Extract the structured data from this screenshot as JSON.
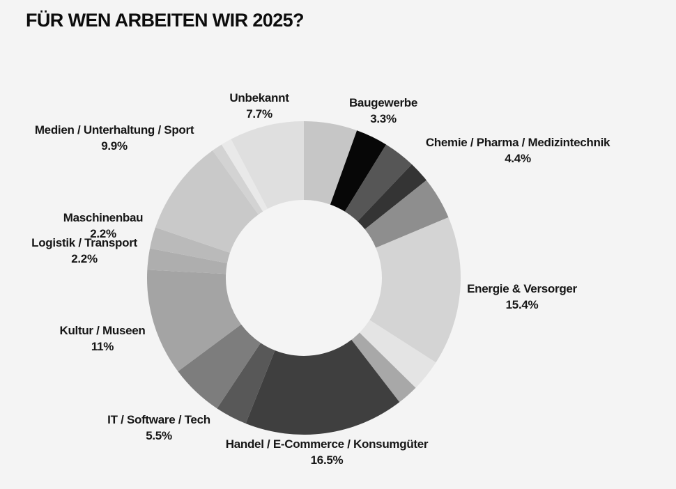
{
  "page": {
    "title": "FÜR WEN ARBEITEN WIR 2025?",
    "background_color": "#f4f4f4",
    "title_color": "#0c0c0c",
    "label_text_color": "#161616"
  },
  "chart_data": {
    "type": "pie",
    "variant": "donut",
    "title": "FÜR WEN ARBEITEN WIR 2025?",
    "unit": "%",
    "start_angle_deg": 0,
    "direction": "clockwise",
    "legend_position": "none",
    "label_style": "outside, bold, two lines (category + percent); small segments unlabeled",
    "palette": "grayscale",
    "segments": [
      {
        "label": null,
        "value": 5.5,
        "display": null,
        "color": "#c6c6c6",
        "labeled": false,
        "label_x": null,
        "label_y": null
      },
      {
        "label": "Baugewerbe",
        "value": 3.3,
        "display": "3.3%",
        "color": "#070707",
        "labeled": true,
        "label_x": 550,
        "label_y": 137
      },
      {
        "label": null,
        "value": 3.3,
        "display": null,
        "color": "#565656",
        "labeled": false,
        "label_x": null,
        "label_y": null
      },
      {
        "label": null,
        "value": 2.2,
        "display": null,
        "color": "#343434",
        "labeled": false,
        "label_x": null,
        "label_y": null
      },
      {
        "label": "Chemie / Pharma / Medizintechnik",
        "value": 4.4,
        "display": "4.4%",
        "color": "#8e8e8e",
        "labeled": true,
        "label_x": 743,
        "label_y": 194
      },
      {
        "label": "Energie & Versorger",
        "value": 15.4,
        "display": "15.4%",
        "color": "#d4d4d4",
        "labeled": true,
        "label_x": 749,
        "label_y": 404
      },
      {
        "label": null,
        "value": 3.3,
        "display": null,
        "color": "#e4e4e4",
        "labeled": false,
        "label_x": null,
        "label_y": null
      },
      {
        "label": null,
        "value": 2.2,
        "display": null,
        "color": "#a8a8a8",
        "labeled": false,
        "label_x": null,
        "label_y": null
      },
      {
        "label": "Handel / E-Commerce / Konsumgüter",
        "value": 16.5,
        "display": "16.5%",
        "color": "#3f3f3f",
        "labeled": true,
        "label_x": 469,
        "label_y": 627
      },
      {
        "label": null,
        "value": 3.3,
        "display": null,
        "color": "#585858",
        "labeled": false,
        "label_x": null,
        "label_y": null
      },
      {
        "label": "IT / Software / Tech",
        "value": 5.5,
        "display": "5.5%",
        "color": "#7d7d7d",
        "labeled": true,
        "label_x": 228,
        "label_y": 592
      },
      {
        "label": "Kultur / Museen",
        "value": 11,
        "display": "11%",
        "color": "#a4a4a4",
        "labeled": true,
        "label_x": 147,
        "label_y": 464
      },
      {
        "label": "Logistik / Transport",
        "value": 2.2,
        "display": "2.2%",
        "color": "#aeaeae",
        "labeled": true,
        "label_x": 121,
        "label_y": 338
      },
      {
        "label": "Maschinenbau",
        "value": 2.2,
        "display": "2.2%",
        "color": "#bababa",
        "labeled": true,
        "label_x": 148,
        "label_y": 302
      },
      {
        "label": "Medien / Unterhaltung / Sport",
        "value": 9.9,
        "display": "9.9%",
        "color": "#c9c9c9",
        "labeled": true,
        "label_x": 164,
        "label_y": 176
      },
      {
        "label": null,
        "value": 1.1,
        "display": null,
        "color": "#d3d3d3",
        "labeled": false,
        "label_x": null,
        "label_y": null
      },
      {
        "label": null,
        "value": 1.1,
        "display": null,
        "color": "#e9e9e9",
        "labeled": false,
        "label_x": null,
        "label_y": null
      },
      {
        "label": "Unbekannt",
        "value": 7.7,
        "display": "7.7%",
        "color": "#dfdfdf",
        "labeled": true,
        "label_x": 372,
        "label_y": 130
      }
    ]
  }
}
